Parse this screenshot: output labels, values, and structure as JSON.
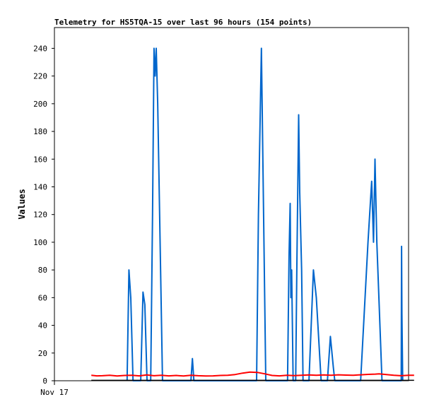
{
  "chart_data": {
    "type": "line",
    "title": "Telemetry for HS5TQA-15 over last 96 hours (154 points)",
    "xlabel": "",
    "ylabel": "Values",
    "x_tick_labels": [
      "Nov 17"
    ],
    "ylim": [
      0,
      255
    ],
    "y_ticks": [
      0,
      20,
      40,
      60,
      80,
      100,
      120,
      140,
      160,
      180,
      200,
      220,
      240
    ],
    "x_range_hours": [
      0,
      96
    ],
    "grid": false,
    "legend": "none",
    "colors": {
      "blue": "#0066cc",
      "red": "#ff0000",
      "black": "#000000",
      "axis": "#000000"
    },
    "series": [
      {
        "color": "#0066cc",
        "points": [
          [
            19.7,
            0
          ],
          [
            20.2,
            80
          ],
          [
            20.7,
            60
          ],
          [
            21.3,
            0
          ],
          [
            23.4,
            0
          ],
          [
            24.0,
            64
          ],
          [
            24.5,
            55
          ],
          [
            25.1,
            0
          ],
          [
            26.1,
            0
          ],
          [
            26.6,
            120
          ],
          [
            27.0,
            240
          ],
          [
            27.3,
            220
          ],
          [
            27.6,
            240
          ],
          [
            28.0,
            200
          ],
          [
            29.3,
            0
          ],
          [
            37.0,
            0
          ],
          [
            37.4,
            16
          ],
          [
            37.8,
            0
          ],
          [
            54.8,
            0
          ],
          [
            55.3,
            120
          ],
          [
            56.1,
            240
          ],
          [
            57.3,
            0
          ],
          [
            63.2,
            0
          ],
          [
            63.6,
            90
          ],
          [
            63.9,
            128
          ],
          [
            64.1,
            60
          ],
          [
            64.3,
            80
          ],
          [
            64.7,
            0
          ],
          [
            65.4,
            0
          ],
          [
            65.7,
            80
          ],
          [
            66.2,
            192
          ],
          [
            66.5,
            136
          ],
          [
            67.0,
            80
          ],
          [
            67.4,
            0
          ],
          [
            69.0,
            0
          ],
          [
            70.2,
            80
          ],
          [
            71.0,
            60
          ],
          [
            72.3,
            0
          ],
          [
            74.0,
            0
          ],
          [
            74.8,
            32
          ],
          [
            75.6,
            10
          ],
          [
            76.0,
            0
          ],
          [
            83.0,
            0
          ],
          [
            85.0,
            100
          ],
          [
            86.0,
            144
          ],
          [
            86.5,
            100
          ],
          [
            86.9,
            160
          ],
          [
            87.4,
            100
          ],
          [
            88.8,
            0
          ],
          [
            94.0,
            0
          ],
          [
            94.1,
            97
          ],
          [
            94.2,
            48
          ],
          [
            94.4,
            0
          ]
        ]
      },
      {
        "color": "#ff0000",
        "points": [
          [
            10.0,
            4.0
          ],
          [
            11.5,
            3.5
          ],
          [
            13.0,
            3.6
          ],
          [
            15.0,
            4.0
          ],
          [
            17.0,
            3.4
          ],
          [
            19.0,
            3.8
          ],
          [
            21.0,
            4.0
          ],
          [
            23.0,
            3.5
          ],
          [
            25.0,
            4.2
          ],
          [
            27.0,
            3.6
          ],
          [
            29.0,
            4.0
          ],
          [
            31.0,
            3.5
          ],
          [
            33.0,
            3.8
          ],
          [
            35.0,
            3.4
          ],
          [
            37.0,
            4.0
          ],
          [
            39.0,
            3.6
          ],
          [
            41.0,
            3.4
          ],
          [
            43.0,
            3.5
          ],
          [
            45.0,
            3.8
          ],
          [
            47.0,
            4.0
          ],
          [
            49.0,
            4.5
          ],
          [
            51.0,
            5.5
          ],
          [
            53.0,
            6.2
          ],
          [
            55.0,
            6.0
          ],
          [
            57.0,
            5.0
          ],
          [
            59.0,
            3.8
          ],
          [
            61.0,
            3.5
          ],
          [
            63.0,
            4.0
          ],
          [
            65.0,
            3.7
          ],
          [
            67.0,
            4.0
          ],
          [
            69.0,
            4.2
          ],
          [
            71.0,
            4.0
          ],
          [
            73.0,
            4.2
          ],
          [
            75.0,
            4.0
          ],
          [
            77.0,
            4.3
          ],
          [
            79.0,
            4.1
          ],
          [
            81.0,
            4.0
          ],
          [
            83.0,
            4.3
          ],
          [
            85.0,
            4.6
          ],
          [
            87.0,
            4.8
          ],
          [
            88.0,
            5.0
          ],
          [
            90.0,
            4.5
          ],
          [
            92.0,
            4.0
          ],
          [
            94.0,
            3.6
          ],
          [
            96.0,
            4.0
          ],
          [
            97.5,
            4.0
          ]
        ]
      },
      {
        "color": "#000000",
        "points": [
          [
            10.0,
            0.3
          ],
          [
            97.5,
            0.3
          ]
        ]
      }
    ]
  }
}
